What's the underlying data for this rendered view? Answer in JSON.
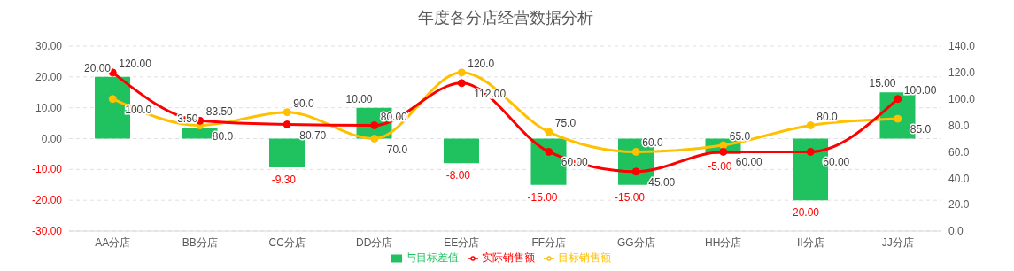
{
  "chart_data": {
    "type": "bar",
    "title": "年度各分店经营数据分析",
    "categories": [
      "AA分店",
      "BB分店",
      "CC分店",
      "DD分店",
      "EE分店",
      "FF分店",
      "GG分店",
      "HH分店",
      "II分店",
      "JJ分店"
    ],
    "series": [
      {
        "name": "与目标差值",
        "type": "bar",
        "color": "#1fc25f",
        "values": [
          20,
          3.5,
          -9.3,
          10,
          -8,
          -15,
          -15,
          -5,
          -20,
          15
        ],
        "value_labels": [
          "20.00",
          "3.50",
          "-9.30",
          "10.00",
          "-8.00",
          "-15.00",
          "-15.00",
          "-5.00",
          "-20.00",
          "15.00"
        ]
      },
      {
        "name": "目标销售额",
        "type": "line",
        "axis": "y2",
        "color": "#ffc000",
        "values": [
          100,
          80,
          90,
          70,
          120,
          75,
          60,
          65,
          80,
          85
        ],
        "value_labels": [
          "100.0",
          "80.0",
          "90.0",
          "70.0",
          "120.0",
          "75.0",
          "60.0",
          "65.0",
          "80.0",
          "85.0"
        ]
      },
      {
        "name": "实际销售额",
        "type": "line",
        "axis": "y2",
        "color": "#ff0000",
        "values": [
          120,
          83.5,
          80.7,
          80,
          112,
          60,
          45,
          60,
          60,
          100
        ],
        "value_labels": [
          "120.00",
          "83.50",
          "80.70",
          "80.00",
          "112.00",
          "60.00",
          "45.00",
          "60.00",
          "60.00",
          "100.00"
        ]
      }
    ],
    "ylim": [
      -30,
      30
    ],
    "yticks": [
      {
        "value": -30,
        "label": "-30.00"
      },
      {
        "value": -20,
        "label": "-20.00"
      },
      {
        "value": -10,
        "label": "-10.00"
      },
      {
        "value": 0,
        "label": "0.00"
      },
      {
        "value": 10,
        "label": "10.00"
      },
      {
        "value": 20,
        "label": "20.00"
      },
      {
        "value": 30,
        "label": "30.00"
      }
    ],
    "y2lim": [
      0,
      140
    ],
    "y2ticks": [
      {
        "value": 0,
        "label": "0.0"
      },
      {
        "value": 20,
        "label": "20.0"
      },
      {
        "value": 40,
        "label": "40.0"
      },
      {
        "value": 60,
        "label": "60.0"
      },
      {
        "value": 80,
        "label": "80.0"
      },
      {
        "value": 100,
        "label": "100.0"
      },
      {
        "value": 120,
        "label": "120.0"
      },
      {
        "value": 140,
        "label": "140.0"
      }
    ],
    "grid": "y",
    "legend": "bottom",
    "marker": "circle"
  }
}
